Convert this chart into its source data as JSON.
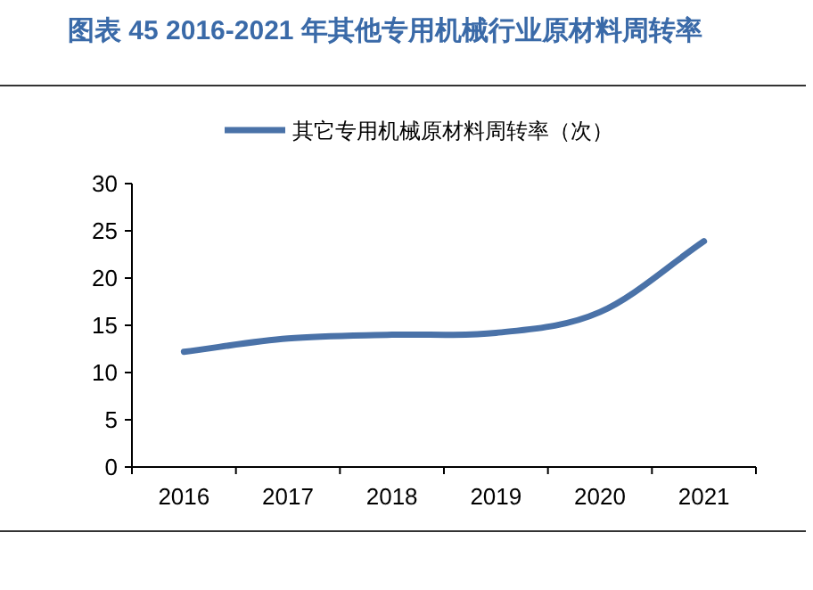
{
  "chart_data": {
    "type": "line",
    "title": "图表 45 2016-2021 年其他专用机械行业原材料周转率",
    "categories": [
      "2016",
      "2017",
      "2018",
      "2019",
      "2020",
      "2021"
    ],
    "series": [
      {
        "name": "其它专用机械原材料周转率（次）",
        "color": "#4a72a8",
        "values": [
          12.2,
          13.6,
          14.0,
          14.2,
          16.4,
          23.9
        ]
      }
    ],
    "ylim": [
      0,
      30
    ],
    "yticks": [
      0,
      5,
      10,
      15,
      20,
      25,
      30
    ],
    "legend": "top",
    "grid": false,
    "marker": "none",
    "line_style": "solid"
  }
}
